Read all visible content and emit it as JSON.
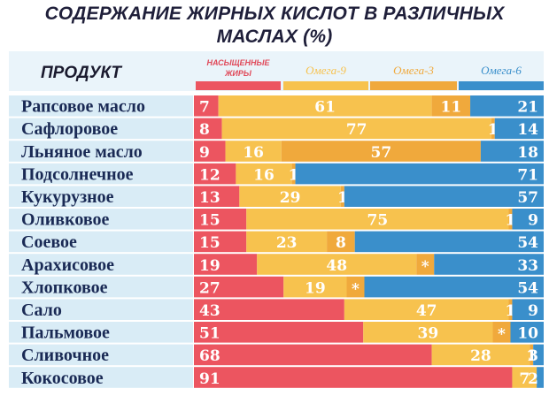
{
  "title_line1": "СОДЕРЖАНИЕ ЖИРНЫХ КИСЛОТ В РАЗЛИЧНЫХ",
  "title_line2": "МАСЛАХ (%)",
  "colors": {
    "saturated": "#ec5560",
    "omega9": "#f7c24e",
    "omega3": "#f0a93c",
    "omega6": "#3a8fcb",
    "label_bg": "#d9ecf6",
    "header_bg": "#eaf4fa"
  },
  "chart_data": {
    "type": "bar",
    "stacked": true,
    "orientation": "horizontal",
    "title": "СОДЕРЖАНИЕ ЖИРНЫХ КИСЛОТ В РАЗЛИЧНЫХ МАСЛАХ (%)",
    "category_header": "ПРОДУКТ",
    "categories": [
      "Рапсовое масло",
      "Сафлоровое",
      "Льняное масло",
      "Подсолнечное",
      "Кукурузное",
      "Оливковое",
      "Соевое",
      "Арахисовое",
      "Хлопковое",
      "Сало",
      "Пальмовое",
      "Сливочное",
      "Кокосовое"
    ],
    "series": [
      {
        "name": "НАСЫЩЕННЫЕ ЖИРЫ",
        "values": [
          7,
          8,
          9,
          12,
          13,
          15,
          15,
          19,
          27,
          43,
          51,
          68,
          91
        ]
      },
      {
        "name": "Омега-9",
        "values": [
          61,
          77,
          16,
          16,
          29,
          75,
          23,
          48,
          19,
          47,
          39,
          28,
          7
        ]
      },
      {
        "name": "Омега-3",
        "values": [
          11,
          1,
          57,
          1,
          1,
          1,
          8,
          null,
          null,
          1,
          null,
          1,
          null
        ]
      },
      {
        "name": "Омега-6",
        "values": [
          21,
          14,
          18,
          71,
          57,
          9,
          54,
          33,
          54,
          9,
          10,
          3,
          2
        ]
      }
    ],
    "trace_marker": "*",
    "trace_rows": [
      "Арахисовое",
      "Хлопковое",
      "Пальмовое"
    ],
    "xlim": [
      0,
      100
    ]
  }
}
